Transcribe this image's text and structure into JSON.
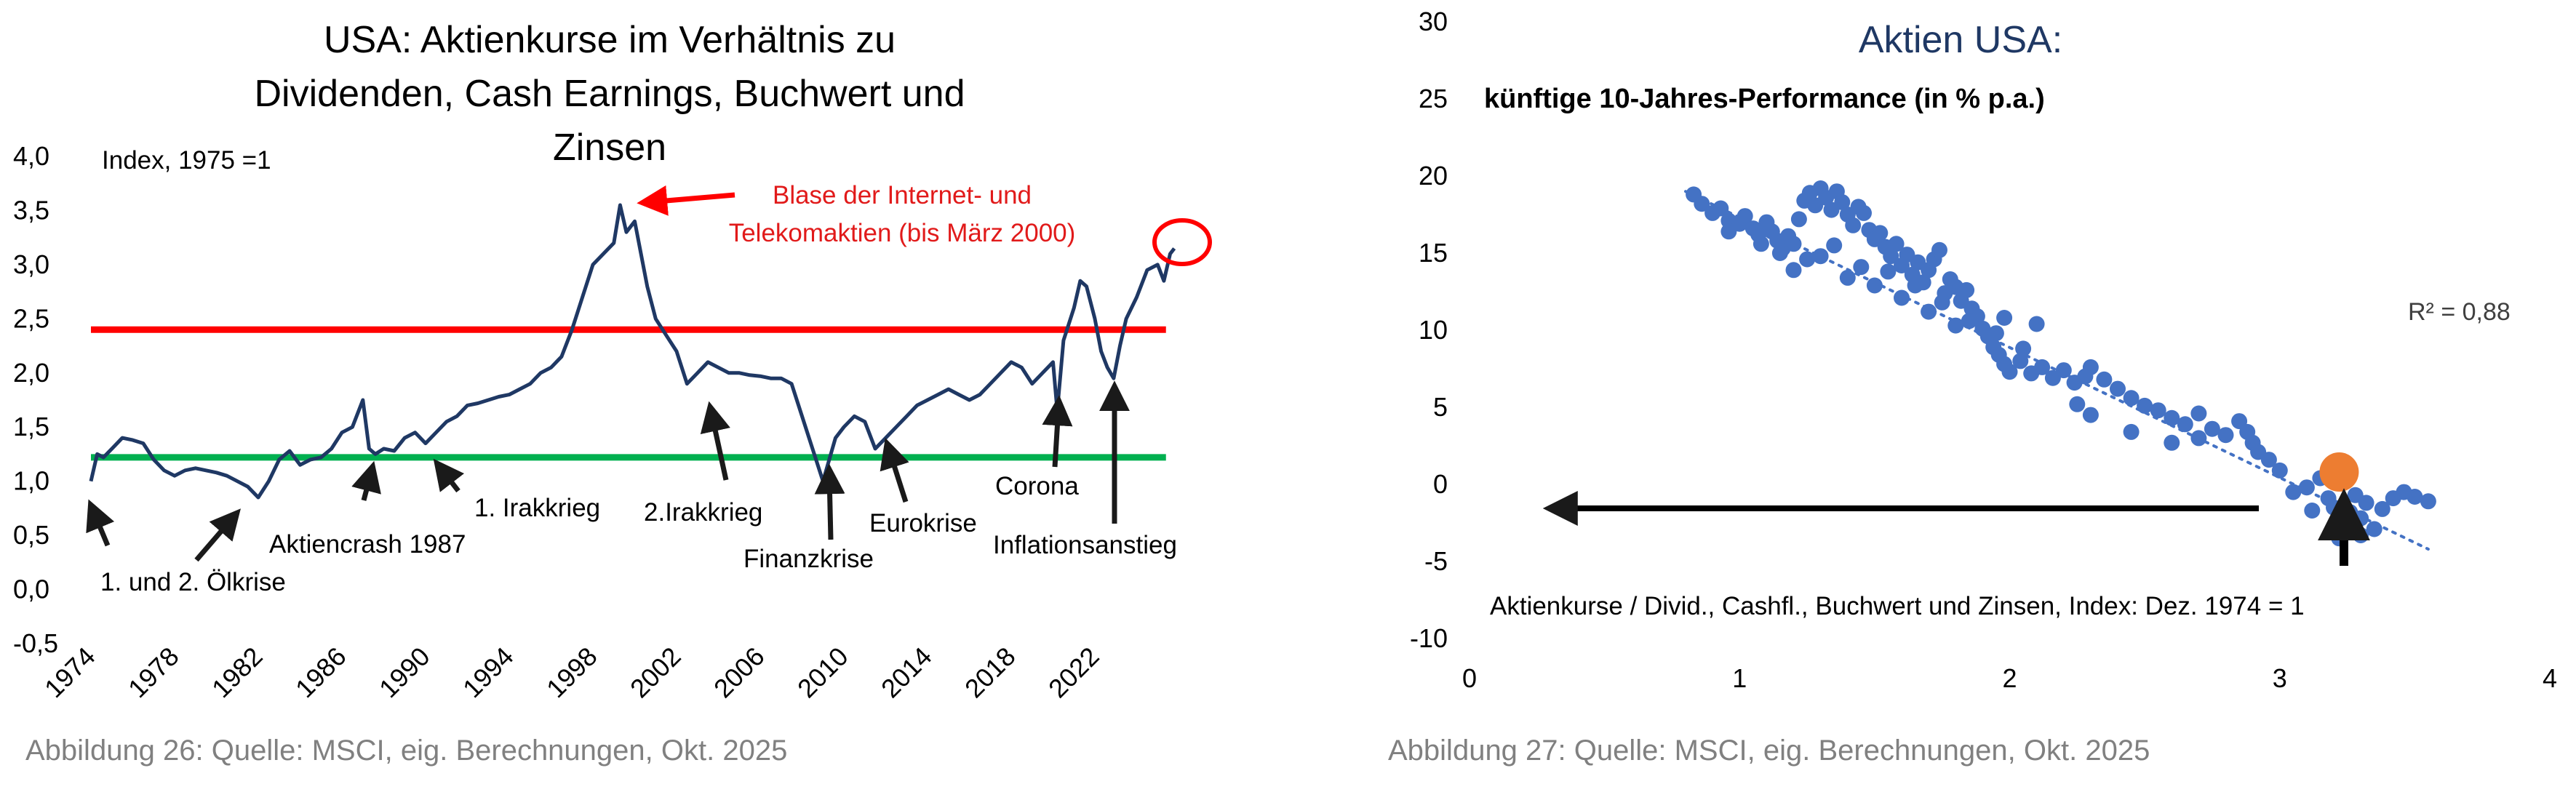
{
  "chart_data": [
    {
      "type": "line",
      "title": "USA: Aktienkurse im Verhältnis zu Dividenden, Cash Earnings, Buchwert und Zinsen",
      "title_lines": [
        "USA: Aktienkurse im Verhältnis zu",
        "Dividenden, Cash Earnings, Buchwert und",
        "Zinsen"
      ],
      "index_note": "Index, 1975 =1",
      "ylim": [
        -0.5,
        4.0
      ],
      "y_ticks": [
        "4,0",
        "3,5",
        "3,0",
        "2,5",
        "2,0",
        "1,5",
        "1,0",
        "0,5",
        "0,0",
        "-0,5"
      ],
      "xlim": [
        1974,
        2026
      ],
      "x_ticks": [
        "1974",
        "1978",
        "1982",
        "1986",
        "1990",
        "1994",
        "1998",
        "2002",
        "2006",
        "2010",
        "2014",
        "2018",
        "2022"
      ],
      "series": [
        {
          "color": "#1f3864",
          "points": [
            [
              1974.0,
              1.0
            ],
            [
              1974.3,
              1.25
            ],
            [
              1974.6,
              1.22
            ],
            [
              1975.0,
              1.3
            ],
            [
              1975.5,
              1.4
            ],
            [
              1976.0,
              1.38
            ],
            [
              1976.5,
              1.35
            ],
            [
              1977.0,
              1.2
            ],
            [
              1977.5,
              1.1
            ],
            [
              1978.0,
              1.05
            ],
            [
              1978.5,
              1.1
            ],
            [
              1979.0,
              1.12
            ],
            [
              1979.5,
              1.1
            ],
            [
              1980.0,
              1.08
            ],
            [
              1980.5,
              1.05
            ],
            [
              1981.0,
              1.0
            ],
            [
              1981.5,
              0.95
            ],
            [
              1982.0,
              0.85
            ],
            [
              1982.5,
              1.0
            ],
            [
              1983.0,
              1.2
            ],
            [
              1983.5,
              1.28
            ],
            [
              1984.0,
              1.15
            ],
            [
              1984.5,
              1.2
            ],
            [
              1985.0,
              1.22
            ],
            [
              1985.5,
              1.3
            ],
            [
              1986.0,
              1.45
            ],
            [
              1986.5,
              1.5
            ],
            [
              1987.0,
              1.75
            ],
            [
              1987.3,
              1.3
            ],
            [
              1987.6,
              1.25
            ],
            [
              1988.0,
              1.3
            ],
            [
              1988.5,
              1.28
            ],
            [
              1989.0,
              1.4
            ],
            [
              1989.5,
              1.45
            ],
            [
              1990.0,
              1.35
            ],
            [
              1990.5,
              1.45
            ],
            [
              1991.0,
              1.55
            ],
            [
              1991.5,
              1.6
            ],
            [
              1992.0,
              1.7
            ],
            [
              1992.5,
              1.72
            ],
            [
              1993.0,
              1.75
            ],
            [
              1993.5,
              1.78
            ],
            [
              1994.0,
              1.8
            ],
            [
              1994.5,
              1.85
            ],
            [
              1995.0,
              1.9
            ],
            [
              1995.5,
              2.0
            ],
            [
              1996.0,
              2.05
            ],
            [
              1996.5,
              2.15
            ],
            [
              1997.0,
              2.4
            ],
            [
              1997.5,
              2.7
            ],
            [
              1998.0,
              3.0
            ],
            [
              1998.5,
              3.1
            ],
            [
              1999.0,
              3.2
            ],
            [
              1999.3,
              3.55
            ],
            [
              1999.6,
              3.3
            ],
            [
              2000.0,
              3.4
            ],
            [
              2000.3,
              3.1
            ],
            [
              2000.6,
              2.8
            ],
            [
              2001.0,
              2.5
            ],
            [
              2001.5,
              2.35
            ],
            [
              2002.0,
              2.2
            ],
            [
              2002.5,
              1.9
            ],
            [
              2003.0,
              2.0
            ],
            [
              2003.5,
              2.1
            ],
            [
              2004.0,
              2.05
            ],
            [
              2004.5,
              2.0
            ],
            [
              2005.0,
              2.0
            ],
            [
              2005.5,
              1.98
            ],
            [
              2006.0,
              1.97
            ],
            [
              2006.5,
              1.95
            ],
            [
              2007.0,
              1.95
            ],
            [
              2007.5,
              1.9
            ],
            [
              2008.0,
              1.6
            ],
            [
              2008.5,
              1.3
            ],
            [
              2009.0,
              1.0
            ],
            [
              2009.3,
              1.2
            ],
            [
              2009.6,
              1.4
            ],
            [
              2010.0,
              1.5
            ],
            [
              2010.5,
              1.6
            ],
            [
              2011.0,
              1.55
            ],
            [
              2011.5,
              1.3
            ],
            [
              2012.0,
              1.4
            ],
            [
              2012.5,
              1.5
            ],
            [
              2013.0,
              1.6
            ],
            [
              2013.5,
              1.7
            ],
            [
              2014.0,
              1.75
            ],
            [
              2014.5,
              1.8
            ],
            [
              2015.0,
              1.85
            ],
            [
              2015.5,
              1.8
            ],
            [
              2016.0,
              1.75
            ],
            [
              2016.5,
              1.8
            ],
            [
              2017.0,
              1.9
            ],
            [
              2017.5,
              2.0
            ],
            [
              2018.0,
              2.1
            ],
            [
              2018.5,
              2.05
            ],
            [
              2019.0,
              1.9
            ],
            [
              2019.5,
              2.0
            ],
            [
              2020.0,
              2.1
            ],
            [
              2020.2,
              1.65
            ],
            [
              2020.5,
              2.3
            ],
            [
              2021.0,
              2.6
            ],
            [
              2021.3,
              2.85
            ],
            [
              2021.6,
              2.8
            ],
            [
              2022.0,
              2.5
            ],
            [
              2022.3,
              2.2
            ],
            [
              2022.6,
              2.05
            ],
            [
              2022.9,
              1.95
            ],
            [
              2023.2,
              2.25
            ],
            [
              2023.5,
              2.5
            ],
            [
              2024.0,
              2.7
            ],
            [
              2024.5,
              2.95
            ],
            [
              2025.0,
              3.0
            ],
            [
              2025.3,
              2.85
            ],
            [
              2025.6,
              3.1
            ],
            [
              2025.8,
              3.15
            ]
          ]
        }
      ],
      "hlines": [
        {
          "y": 2.4,
          "color": "#ff0000"
        },
        {
          "y": 1.22,
          "color": "#00b050"
        }
      ],
      "annotations": [
        {
          "text": "Blase der Internet- und",
          "color": "#ff0000"
        },
        {
          "text": "Telekomaktien (bis März 2000)",
          "color": "#ff0000"
        },
        {
          "text": "1. und 2. Ölkrise",
          "color": "#000000"
        },
        {
          "text": "Aktiencrash 1987",
          "color": "#000000"
        },
        {
          "text": "1. Irakkrieg",
          "color": "#000000"
        },
        {
          "text": "2.Irakkrieg",
          "color": "#000000"
        },
        {
          "text": "Finanzkrise",
          "color": "#000000"
        },
        {
          "text": "Eurokrise",
          "color": "#000000"
        },
        {
          "text": "Corona",
          "color": "#000000"
        },
        {
          "text": "Inflationsanstieg",
          "color": "#000000"
        }
      ],
      "caption": "Abbildung 26: Quelle: MSCI, eig. Berechnungen, Okt. 2025"
    },
    {
      "type": "scatter",
      "title": "Aktien USA:",
      "ylabel": "künftige 10-Jahres-Performance (in % p.a.)",
      "xlabel": "Aktienkurse / Divid., Cashfl., Buchwert und Zinsen, Index: Dez. 1974 = 1",
      "xlim": [
        0,
        4
      ],
      "ylim": [
        -10,
        30
      ],
      "x_ticks": [
        "0",
        "1",
        "2",
        "3",
        "4"
      ],
      "y_ticks": [
        "30",
        "25",
        "20",
        "15",
        "10",
        "5",
        "0",
        "-5",
        "-10"
      ],
      "r_squared": "R² = 0,88",
      "trendline": {
        "style": "dotted",
        "color": "#4472c4",
        "x": [
          0.8,
          3.55
        ],
        "y": [
          19.0,
          -4.2
        ]
      },
      "current_point": {
        "x": 3.22,
        "y": 0.8,
        "color": "#ed7d31"
      },
      "series": [
        {
          "color": "#4472c4",
          "points": [
            [
              0.83,
              18.8
            ],
            [
              0.86,
              18.2
            ],
            [
              0.9,
              17.6
            ],
            [
              0.93,
              17.9
            ],
            [
              0.96,
              17.1
            ],
            [
              1.0,
              16.9
            ],
            [
              1.02,
              17.4
            ],
            [
              1.05,
              16.6
            ],
            [
              1.07,
              16.2
            ],
            [
              1.1,
              17.0
            ],
            [
              1.12,
              16.4
            ],
            [
              1.14,
              15.8
            ],
            [
              1.16,
              15.3
            ],
            [
              1.18,
              16.1
            ],
            [
              1.2,
              15.6
            ],
            [
              1.22,
              17.2
            ],
            [
              1.24,
              18.4
            ],
            [
              1.26,
              18.9
            ],
            [
              1.28,
              18.1
            ],
            [
              1.3,
              19.2
            ],
            [
              1.32,
              18.6
            ],
            [
              1.34,
              17.8
            ],
            [
              1.36,
              19.0
            ],
            [
              1.38,
              18.3
            ],
            [
              1.4,
              17.5
            ],
            [
              1.42,
              16.8
            ],
            [
              1.44,
              18.0
            ],
            [
              1.46,
              17.6
            ],
            [
              1.48,
              16.5
            ],
            [
              1.5,
              15.9
            ],
            [
              1.52,
              16.3
            ],
            [
              1.54,
              15.4
            ],
            [
              1.56,
              14.8
            ],
            [
              1.58,
              15.6
            ],
            [
              1.6,
              14.2
            ],
            [
              1.62,
              14.9
            ],
            [
              1.64,
              13.6
            ],
            [
              1.66,
              14.4
            ],
            [
              1.68,
              13.1
            ],
            [
              1.7,
              13.9
            ],
            [
              1.72,
              14.6
            ],
            [
              1.74,
              15.2
            ],
            [
              1.76,
              12.4
            ],
            [
              1.78,
              13.3
            ],
            [
              1.8,
              12.8
            ],
            [
              1.82,
              11.9
            ],
            [
              1.84,
              12.6
            ],
            [
              1.86,
              11.4
            ],
            [
              1.88,
              10.9
            ],
            [
              1.9,
              10.1
            ],
            [
              1.92,
              9.6
            ],
            [
              1.94,
              8.9
            ],
            [
              1.96,
              8.4
            ],
            [
              1.98,
              7.8
            ],
            [
              2.0,
              7.3
            ],
            [
              2.04,
              8.0
            ],
            [
              2.08,
              7.2
            ],
            [
              2.12,
              7.6
            ],
            [
              2.16,
              6.9
            ],
            [
              2.2,
              7.4
            ],
            [
              2.24,
              6.6
            ],
            [
              2.28,
              7.0
            ],
            [
              2.3,
              7.6
            ],
            [
              1.15,
              15.0
            ],
            [
              1.25,
              14.6
            ],
            [
              1.35,
              15.5
            ],
            [
              1.45,
              14.1
            ],
            [
              1.55,
              13.8
            ],
            [
              1.65,
              12.9
            ],
            [
              1.75,
              11.8
            ],
            [
              1.85,
              10.6
            ],
            [
              1.95,
              9.8
            ],
            [
              1.2,
              13.9
            ],
            [
              1.3,
              14.8
            ],
            [
              1.4,
              13.4
            ],
            [
              1.5,
              12.9
            ],
            [
              1.6,
              12.1
            ],
            [
              1.7,
              11.2
            ],
            [
              1.8,
              10.3
            ],
            [
              2.05,
              8.8
            ],
            [
              2.1,
              10.4
            ],
            [
              1.98,
              10.8
            ],
            [
              0.96,
              16.4
            ],
            [
              1.08,
              15.6
            ],
            [
              2.35,
              6.8
            ],
            [
              2.4,
              6.2
            ],
            [
              2.45,
              5.6
            ],
            [
              2.5,
              5.1
            ],
            [
              2.55,
              4.8
            ],
            [
              2.6,
              4.3
            ],
            [
              2.65,
              3.9
            ],
            [
              2.7,
              4.6
            ],
            [
              2.75,
              3.6
            ],
            [
              2.8,
              3.2
            ],
            [
              2.85,
              4.1
            ],
            [
              2.88,
              3.4
            ],
            [
              2.9,
              2.7
            ],
            [
              2.92,
              2.1
            ],
            [
              2.96,
              1.6
            ],
            [
              3.0,
              0.9
            ],
            [
              3.05,
              -0.5
            ],
            [
              3.1,
              -0.2
            ],
            [
              3.15,
              0.4
            ],
            [
              3.18,
              -0.9
            ],
            [
              3.2,
              -1.5
            ],
            [
              3.22,
              -3.5
            ],
            [
              3.24,
              -2.6
            ],
            [
              3.26,
              -1.8
            ],
            [
              3.28,
              -0.7
            ],
            [
              3.3,
              -2.2
            ],
            [
              3.32,
              -1.2
            ],
            [
              3.35,
              -2.9
            ],
            [
              3.38,
              -1.6
            ],
            [
              3.42,
              -0.9
            ],
            [
              3.46,
              -0.5
            ],
            [
              3.55,
              -1.1
            ],
            [
              2.25,
              5.2
            ],
            [
              2.3,
              4.5
            ],
            [
              2.45,
              3.4
            ],
            [
              2.6,
              2.7
            ],
            [
              2.7,
              3.0
            ],
            [
              3.12,
              -1.7
            ],
            [
              3.3,
              -3.3
            ],
            [
              3.5,
              -0.8
            ]
          ]
        }
      ],
      "caption": "Abbildung 27: Quelle: MSCI, eig. Berechnungen, Okt. 2025"
    }
  ]
}
